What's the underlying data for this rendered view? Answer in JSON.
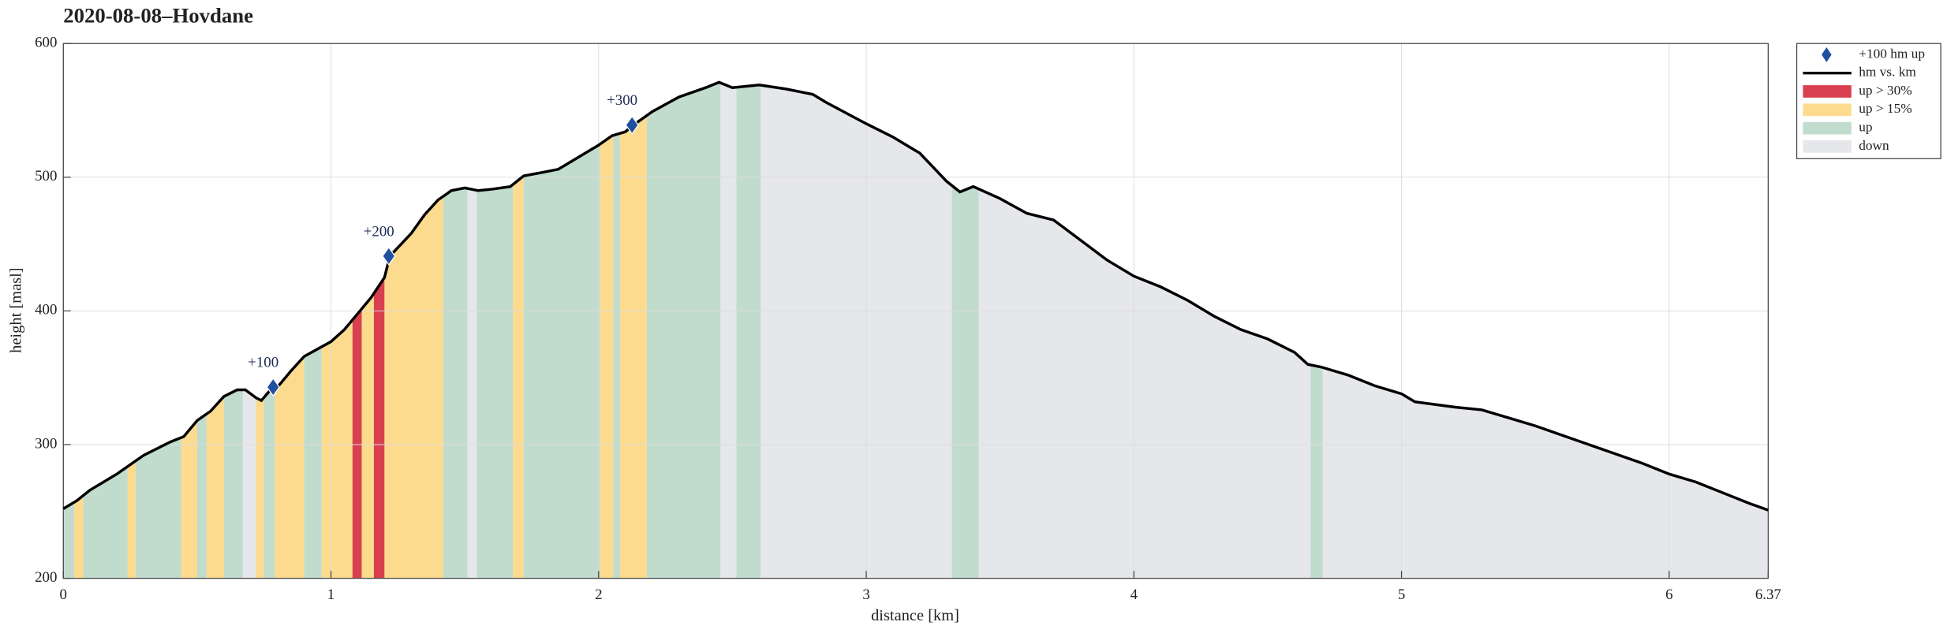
{
  "chart_data": {
    "type": "area",
    "title": "2020-08-08–Hovdane",
    "xlabel": "distance [km]",
    "ylabel": "height [masl]",
    "xlim": [
      0,
      6.37
    ],
    "ylim": [
      200,
      600
    ],
    "xticks": [
      0,
      1,
      2,
      3,
      4,
      5,
      6,
      6.37
    ],
    "yticks": [
      200,
      300,
      400,
      500,
      600
    ],
    "grid": true,
    "legend": "outside-upper-right",
    "series": [
      {
        "name": "+100 hm up",
        "type": "scatter",
        "color": "#1f4fa0",
        "x": [
          0.784,
          1.216,
          2.125
        ],
        "values": [
          343,
          441,
          539
        ],
        "labels": [
          "+100",
          "+200",
          "+300"
        ]
      },
      {
        "name": "hm vs. km",
        "type": "line",
        "color": "#000000",
        "x": [
          0,
          0.05,
          0.1,
          0.2,
          0.3,
          0.4,
          0.45,
          0.5,
          0.55,
          0.6,
          0.65,
          0.68,
          0.72,
          0.74,
          0.77,
          0.8,
          0.85,
          0.9,
          1.0,
          1.05,
          1.1,
          1.15,
          1.2,
          1.22,
          1.3,
          1.35,
          1.4,
          1.45,
          1.5,
          1.55,
          1.6,
          1.67,
          1.72,
          1.8,
          1.85,
          1.95,
          2.0,
          2.05,
          2.1,
          2.13,
          2.2,
          2.3,
          2.4,
          2.45,
          2.5,
          2.6,
          2.7,
          2.8,
          2.85,
          3.0,
          3.1,
          3.2,
          3.3,
          3.35,
          3.4,
          3.5,
          3.6,
          3.7,
          3.8,
          3.9,
          4.0,
          4.1,
          4.2,
          4.3,
          4.4,
          4.5,
          4.6,
          4.65,
          4.7,
          4.8,
          4.9,
          5.0,
          5.05,
          5.2,
          5.3,
          5.4,
          5.5,
          5.6,
          5.7,
          5.8,
          5.9,
          6.0,
          6.1,
          6.2,
          6.3,
          6.37
        ],
        "values": [
          252,
          258,
          266,
          278,
          292,
          302,
          306,
          318,
          325,
          336,
          341,
          341,
          335,
          333,
          340,
          343,
          355,
          366,
          377,
          386,
          398,
          410,
          425,
          441,
          458,
          472,
          483,
          490,
          492,
          490,
          491,
          493,
          501,
          504,
          506,
          518,
          524,
          531,
          534,
          539,
          549,
          560,
          567,
          571,
          567,
          569,
          566,
          562,
          556,
          540,
          530,
          518,
          497,
          489,
          493,
          484,
          473,
          468,
          453,
          438,
          426,
          418,
          408,
          396,
          386,
          379,
          369,
          360,
          358,
          352,
          344,
          338,
          332,
          328,
          326,
          320,
          314,
          307,
          300,
          293,
          286,
          278,
          272,
          264,
          256,
          251
        ]
      }
    ],
    "bands": [
      {
        "name": "up > 30%",
        "color": "#d9404f",
        "intervals": [
          [
            1.08,
            1.115
          ],
          [
            1.16,
            1.2
          ]
        ]
      },
      {
        "name": "up > 15%",
        "color": "#fddb8e",
        "intervals": [
          [
            0.04,
            0.075
          ],
          [
            0.24,
            0.27
          ],
          [
            0.44,
            0.5
          ],
          [
            0.535,
            0.6
          ],
          [
            0.72,
            0.75
          ],
          [
            0.79,
            0.9
          ],
          [
            0.965,
            1.08
          ],
          [
            1.115,
            1.16
          ],
          [
            1.2,
            1.42
          ],
          [
            1.68,
            1.72
          ],
          [
            2.005,
            2.055
          ],
          [
            2.08,
            2.18
          ]
        ]
      },
      {
        "name": "up",
        "color": "#c1dccd",
        "intervals": [
          [
            0,
            0.04
          ],
          [
            0.075,
            0.24
          ],
          [
            0.27,
            0.44
          ],
          [
            0.5,
            0.535
          ],
          [
            0.6,
            0.67
          ],
          [
            0.75,
            0.79
          ],
          [
            0.9,
            0.965
          ],
          [
            1.42,
            1.51
          ],
          [
            1.545,
            1.68
          ],
          [
            1.72,
            2.005
          ],
          [
            2.055,
            2.08
          ],
          [
            2.18,
            2.455
          ],
          [
            2.515,
            2.605
          ],
          [
            3.32,
            3.42
          ],
          [
            4.66,
            4.705
          ]
        ]
      },
      {
        "name": "down",
        "color": "#e6e7eb",
        "base": true
      }
    ]
  }
}
